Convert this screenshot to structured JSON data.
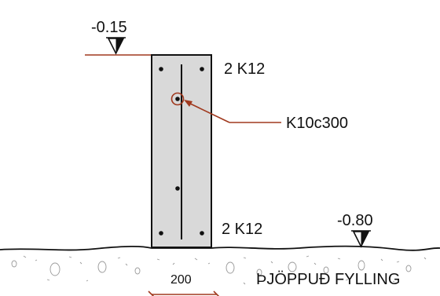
{
  "levels": {
    "top": "-0.15",
    "bottom": "-0.80"
  },
  "rebar": {
    "top": "2 K12",
    "bottom": "2 K12",
    "stirrup": "K10c300"
  },
  "dimension": {
    "width": "200"
  },
  "ground": {
    "fill_label": "ÞJÖPPUÐ FYLLING"
  },
  "colors": {
    "concrete": "#d9d9d9",
    "outline": "#111111",
    "annotation": "#a0391e"
  }
}
